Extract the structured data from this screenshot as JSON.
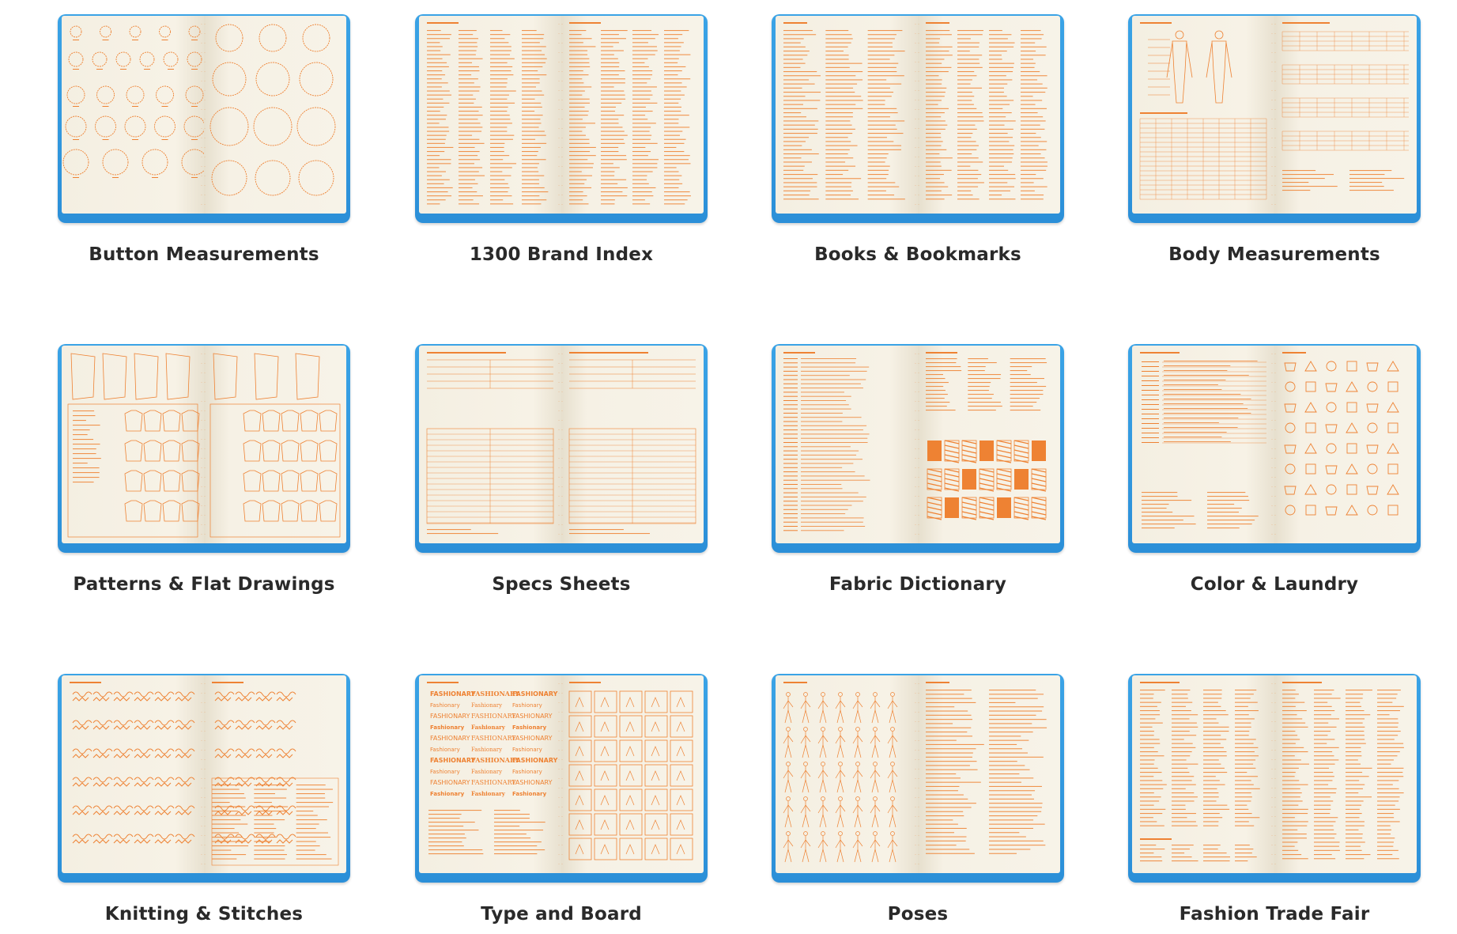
{
  "accent_color": "#2f96dc",
  "ink_color": "#ee8233",
  "page_color": "#f6f1e4",
  "items": [
    {
      "title": "Button Measurements",
      "pattern": "circles"
    },
    {
      "title": "1300 Brand Index",
      "pattern": "columns"
    },
    {
      "title": "Books & Bookmarks",
      "pattern": "lists"
    },
    {
      "title": "Body Measurements",
      "pattern": "figure-table"
    },
    {
      "title": "Patterns & Flat Drawings",
      "pattern": "drawings"
    },
    {
      "title": "Specs Sheets",
      "pattern": "form"
    },
    {
      "title": "Fabric Dictionary",
      "pattern": "swatches"
    },
    {
      "title": "Color & Laundry",
      "pattern": "symbols"
    },
    {
      "title": "Knitting & Stitches",
      "pattern": "stitches"
    },
    {
      "title": "Type and Board",
      "pattern": "type-board"
    },
    {
      "title": "Poses",
      "pattern": "poses"
    },
    {
      "title": "Fashion Trade Fair",
      "pattern": "table"
    }
  ]
}
